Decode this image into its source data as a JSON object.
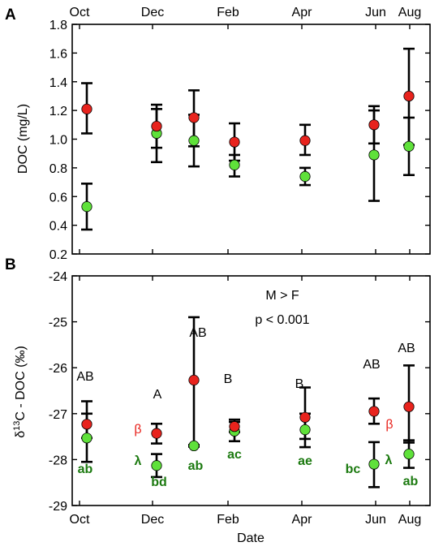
{
  "chart_data": [
    {
      "panel": "A",
      "type": "scatter",
      "ylabel": "DOC (mg/L)",
      "ylim": [
        0.2,
        1.8
      ],
      "yticks": [
        "0.2",
        "0.4",
        "0.6",
        "0.8",
        "1.0",
        "1.2",
        "1.4",
        "1.6",
        "1.8"
      ],
      "xticks_top": [
        "Oct",
        "Dec",
        "Feb",
        "Apr",
        "Jun",
        "Aug"
      ],
      "colors": {
        "red": "#e8231d",
        "green": "#5fe13a"
      },
      "series": [
        {
          "color": "red",
          "points": [
            {
              "x": "Oct",
              "y": 1.21,
              "ylow": 1.04,
              "yhigh": 1.39
            },
            {
              "x": "Dec",
              "y": 1.09,
              "ylow": 0.94,
              "yhigh": 1.24
            },
            {
              "x": "Jan",
              "y": 1.15,
              "ylow": 0.95,
              "yhigh": 1.34
            },
            {
              "x": "Feb",
              "y": 0.98,
              "ylow": 0.85,
              "yhigh": 1.11
            },
            {
              "x": "Apr",
              "y": 0.99,
              "ylow": 0.89,
              "yhigh": 1.1
            },
            {
              "x": "Jun",
              "y": 1.1,
              "ylow": 0.97,
              "yhigh": 1.23
            },
            {
              "x": "Aug",
              "y": 1.3,
              "ylow": 0.96,
              "yhigh": 1.63
            }
          ]
        },
        {
          "color": "green",
          "points": [
            {
              "x": "Oct",
              "y": 0.53,
              "ylow": 0.37,
              "yhigh": 0.69
            },
            {
              "x": "Dec",
              "y": 1.04,
              "ylow": 0.84,
              "yhigh": 1.21
            },
            {
              "x": "Jan",
              "y": 0.99,
              "ylow": 0.81,
              "yhigh": 1.17
            },
            {
              "x": "Feb",
              "y": 0.82,
              "ylow": 0.74,
              "yhigh": 0.89
            },
            {
              "x": "Apr",
              "y": 0.74,
              "ylow": 0.68,
              "yhigh": 0.8
            },
            {
              "x": "Jun",
              "y": 0.89,
              "ylow": 0.57,
              "yhigh": 1.2
            },
            {
              "x": "Aug",
              "y": 0.95,
              "ylow": 0.75,
              "yhigh": 1.15
            }
          ]
        }
      ]
    },
    {
      "panel": "B",
      "type": "scatter",
      "ylabel": "δ13C - DOC (‰)",
      "ylim": [
        -29,
        -24
      ],
      "yticks": [
        "-29",
        "-28",
        "-27",
        "-26",
        "-25",
        "-24"
      ],
      "xlabel": "Date",
      "xticks_bottom": [
        "Oct",
        "Dec",
        "Feb",
        "Apr",
        "Jun",
        "Aug"
      ],
      "annotation": [
        "M > F",
        "p < 0.001"
      ],
      "colors": {
        "red": "#e8231d",
        "green": "#5fe13a",
        "upper_label": "#000000",
        "lower_label": "#1c7a10",
        "greek_red": "#e8231d",
        "greek_green": "#1c7a10"
      },
      "series": [
        {
          "color": "red",
          "points": [
            {
              "x": "Oct",
              "y": -27.23,
              "ylow": -27.53,
              "yhigh": -26.73
            },
            {
              "x": "Dec",
              "y": -27.43,
              "ylow": -27.65,
              "yhigh": -27.22
            },
            {
              "x": "Jan",
              "y": -26.27,
              "ylow": -27.68,
              "yhigh": -24.9
            },
            {
              "x": "Feb",
              "y": -27.28,
              "ylow": -27.4,
              "yhigh": -27.13
            },
            {
              "x": "Apr",
              "y": -27.08,
              "ylow": -27.55,
              "yhigh": -26.43
            },
            {
              "x": "Jun",
              "y": -26.95,
              "ylow": -27.22,
              "yhigh": -26.67
            },
            {
              "x": "Aug",
              "y": -26.85,
              "ylow": -27.63,
              "yhigh": -25.95
            }
          ]
        },
        {
          "color": "green",
          "points": [
            {
              "x": "Oct",
              "y": -27.53,
              "ylow": -28.05,
              "yhigh": -27.0
            },
            {
              "x": "Dec",
              "y": -28.13,
              "ylow": -28.38,
              "yhigh": -27.88
            },
            {
              "x": "Jan",
              "y": -27.7,
              "ylow": -27.72,
              "yhigh": -27.68
            },
            {
              "x": "Feb",
              "y": -27.38,
              "ylow": -27.6,
              "yhigh": -27.18
            },
            {
              "x": "Apr",
              "y": -27.35,
              "ylow": -27.73,
              "yhigh": -27.0
            },
            {
              "x": "Jun",
              "y": -28.1,
              "ylow": -28.6,
              "yhigh": -27.62
            },
            {
              "x": "Aug",
              "y": -27.88,
              "ylow": -28.18,
              "yhigh": -27.58
            }
          ]
        }
      ],
      "group_labels": [
        {
          "x": "Oct",
          "upper": "AB",
          "lower": "ab"
        },
        {
          "x": "Dec",
          "upper": "A",
          "lower": "bd",
          "greek_red": "β",
          "greek_green": "λ"
        },
        {
          "x": "Jan",
          "upper": "AB",
          "lower": "ab"
        },
        {
          "x": "Feb",
          "upper": "B",
          "lower": "ac"
        },
        {
          "x": "Apr",
          "upper": "B",
          "lower": "ae"
        },
        {
          "x": "Jun",
          "upper": "AB",
          "lower": "bc",
          "greek_red": "β",
          "greek_green": "λ"
        },
        {
          "x": "Aug",
          "upper": "AB",
          "lower": "ab"
        }
      ]
    }
  ]
}
